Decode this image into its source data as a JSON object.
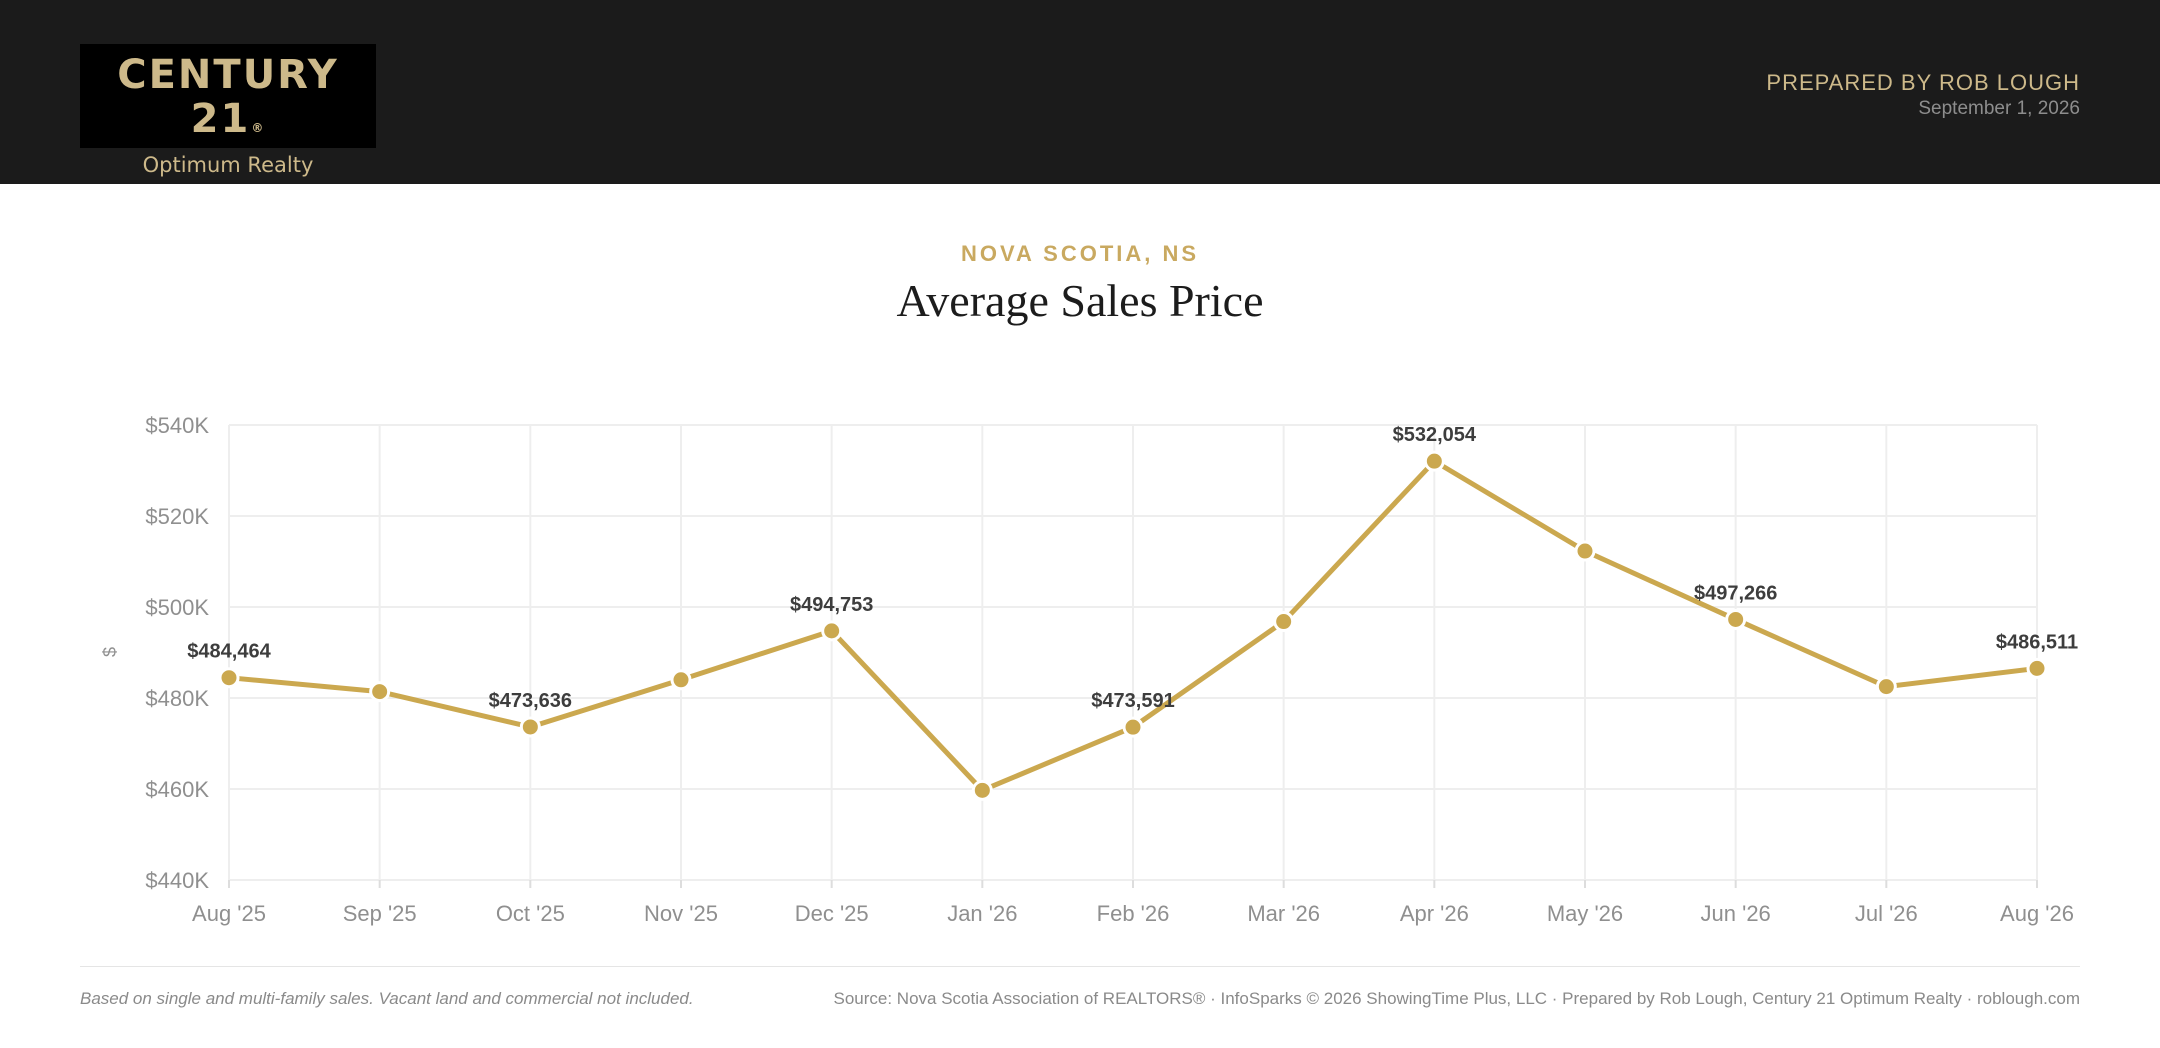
{
  "header": {
    "brand_main": "CENTURY 21",
    "brand_registered": "®",
    "brand_sub": "Optimum Realty",
    "prepared_by": "PREPARED BY ROB LOUGH",
    "date": "September 1, 2026"
  },
  "page": {
    "region": "NOVA SCOTIA, NS",
    "title": "Average Sales Price"
  },
  "colors": {
    "header_bg": "#1b1b1b",
    "gold": "#c9a960",
    "line": "#cba84f",
    "grid": "#eeeeee",
    "axis_text": "#8f8f8f",
    "label_text": "#3d3d3d"
  },
  "chart_data": {
    "type": "line",
    "title": "Average Sales Price",
    "subtitle": "NOVA SCOTIA, NS",
    "ylabel": "$",
    "xlabel": "",
    "categories": [
      "Aug '25",
      "Sep '25",
      "Oct '25",
      "Nov '25",
      "Dec '25",
      "Jan '26",
      "Feb '26",
      "Mar '26",
      "Apr '26",
      "May '26",
      "Jun '26",
      "Jul '26",
      "Aug '26"
    ],
    "series": [
      {
        "values": [
          484464,
          481400,
          473636,
          484000,
          494753,
          459700,
          473591,
          496800,
          532054,
          512300,
          497266,
          482500,
          486511
        ]
      }
    ],
    "data_labels": [
      {
        "index": 0,
        "text": "$484,464"
      },
      {
        "index": 2,
        "text": "$473,636"
      },
      {
        "index": 4,
        "text": "$494,753"
      },
      {
        "index": 6,
        "text": "$473,591"
      },
      {
        "index": 8,
        "text": "$532,054"
      },
      {
        "index": 10,
        "text": "$497,266"
      },
      {
        "index": 12,
        "text": "$486,511"
      }
    ],
    "ylim": [
      440000,
      540000
    ],
    "yticks": [
      440000,
      460000,
      480000,
      500000,
      520000,
      540000
    ],
    "ytick_labels": [
      "$440K",
      "$460K",
      "$480K",
      "$500K",
      "$520K",
      "$540K"
    ],
    "grid": true,
    "legend": "none"
  },
  "footer": {
    "note": "Based on single and multi-family sales. Vacant land and commercial not included.",
    "source": "Source: Nova Scotia Association of REALTORS® · InfoSparks © 2026 ShowingTime Plus, LLC · Prepared by Rob Lough, Century 21 Optimum Realty · roblough.com"
  }
}
